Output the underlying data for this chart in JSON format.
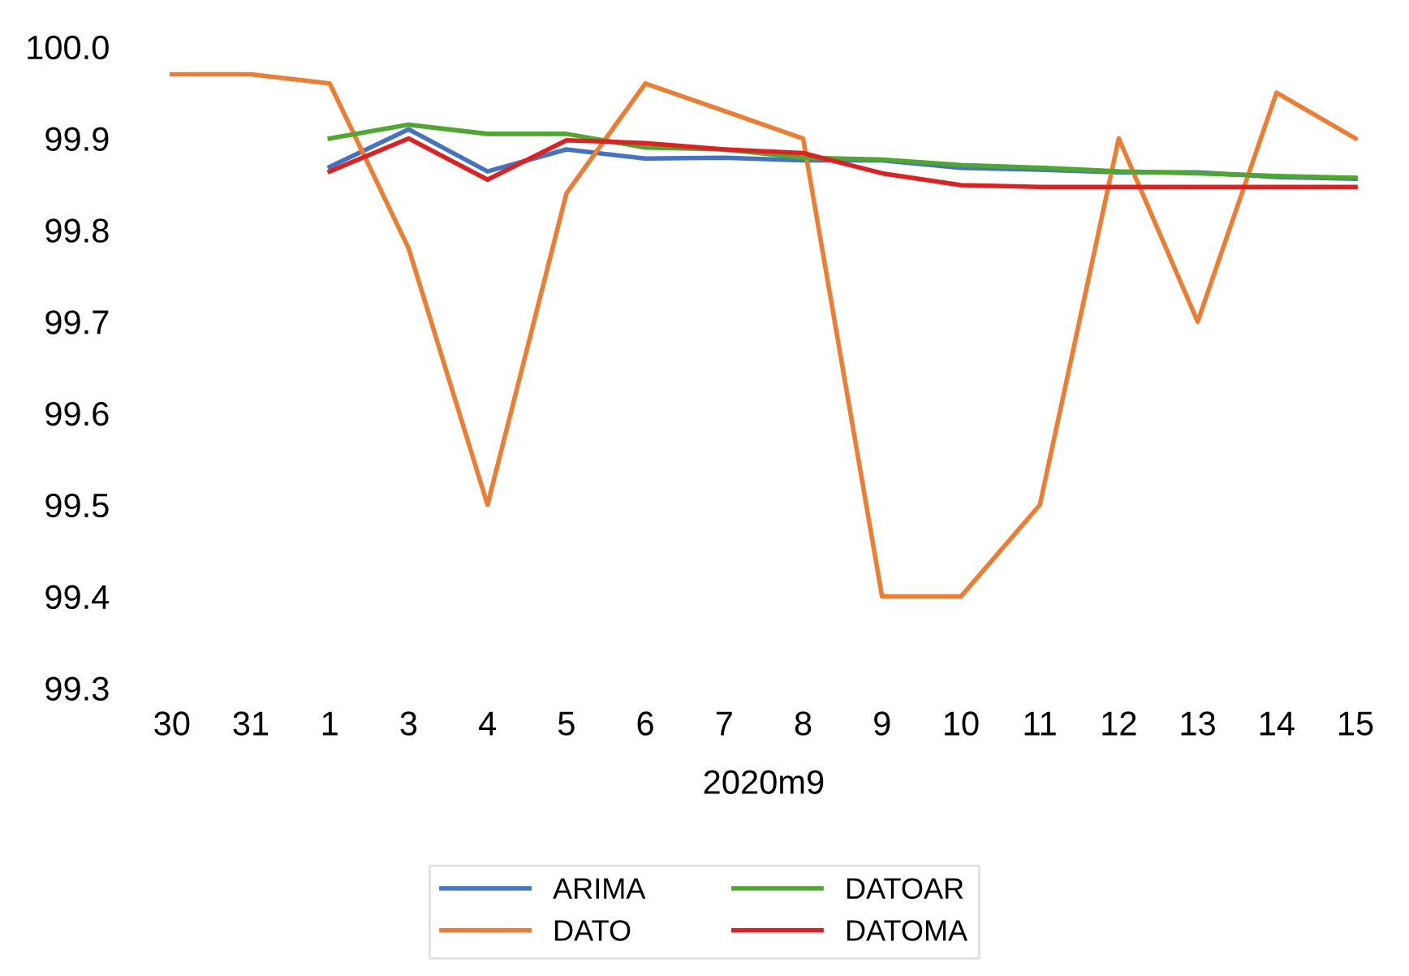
{
  "chart_data": {
    "type": "line",
    "xlabel": "2020m9",
    "categories": [
      "30",
      "31",
      "1",
      "3",
      "4",
      "5",
      "6",
      "7",
      "8",
      "9",
      "10",
      "11",
      "12",
      "13",
      "14",
      "15"
    ],
    "series": [
      {
        "name": "ARIMA",
        "color": "#4472c4",
        "values": [
          null,
          null,
          99.869,
          99.91,
          99.864,
          99.888,
          99.878,
          99.879,
          99.876,
          99.876,
          99.868,
          99.866,
          99.863,
          99.863,
          99.858,
          99.856
        ]
      },
      {
        "name": "DATO",
        "color": "#ed7d31",
        "values": [
          99.97,
          99.97,
          99.96,
          99.78,
          99.5,
          99.84,
          99.96,
          99.93,
          99.9,
          99.4,
          99.4,
          99.5,
          99.9,
          99.7,
          99.95,
          99.9
        ]
      },
      {
        "name": "DATOAR",
        "color": "#4ea72e",
        "values": [
          null,
          null,
          99.9,
          99.915,
          99.905,
          99.905,
          99.89,
          99.888,
          99.879,
          99.877,
          99.871,
          99.868,
          99.864,
          99.862,
          99.859,
          99.857
        ]
      },
      {
        "name": "DATOMA",
        "color": "#e02020",
        "values": [
          null,
          null,
          99.864,
          99.9,
          99.855,
          99.898,
          99.895,
          99.888,
          99.884,
          99.862,
          99.849,
          99.847,
          99.847,
          99.847,
          99.847,
          99.847
        ]
      }
    ],
    "ylim": [
      99.3,
      100.0
    ],
    "yticks": [
      {
        "value": 99.3,
        "label": "99.3"
      },
      {
        "value": 99.4,
        "label": "99.4"
      },
      {
        "value": 99.5,
        "label": "99.5"
      },
      {
        "value": 99.6,
        "label": "99.6"
      },
      {
        "value": 99.7,
        "label": "99.7"
      },
      {
        "value": 99.8,
        "label": "99.8"
      },
      {
        "value": 99.9,
        "label": "99.9"
      },
      {
        "value": 100.0,
        "label": "100.0"
      }
    ],
    "grid": false,
    "legend": "bottom",
    "marker": "none",
    "line_style": "solid"
  }
}
